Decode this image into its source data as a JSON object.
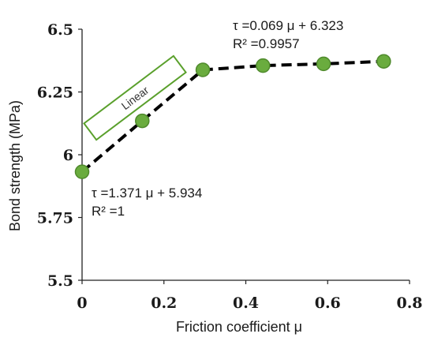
{
  "chart_data": {
    "type": "line",
    "x": [
      0,
      0.147,
      0.295,
      0.442,
      0.59,
      0.737
    ],
    "series": [
      {
        "values": [
          5.932,
          6.135,
          6.338,
          6.355,
          6.362,
          6.372
        ]
      }
    ],
    "xlabel": "Friction coefficient μ",
    "ylabel": "Bond strength (MPa)",
    "xlim": [
      0,
      0.8
    ],
    "ylim": [
      5.5,
      6.5
    ],
    "xticks": [
      "0",
      "0.2",
      "0.4",
      "0.6",
      "0.8"
    ],
    "yticks": [
      "5.5",
      "5.75",
      "6",
      "6.25",
      "6.5"
    ],
    "grid": false,
    "annotations": {
      "fit_upper_line1": "τ =0.069 μ + 6.323",
      "fit_upper_line2": "R² =0.9957",
      "fit_lower_line1": "τ =1.371 μ + 5.934",
      "fit_lower_line2": "R² =1",
      "region_label": "Linear"
    },
    "colors": {
      "marker_fill": "#6aac3e",
      "marker_edge": "#4f8a2c",
      "line": "#000000",
      "box": "#5aa02c"
    }
  }
}
